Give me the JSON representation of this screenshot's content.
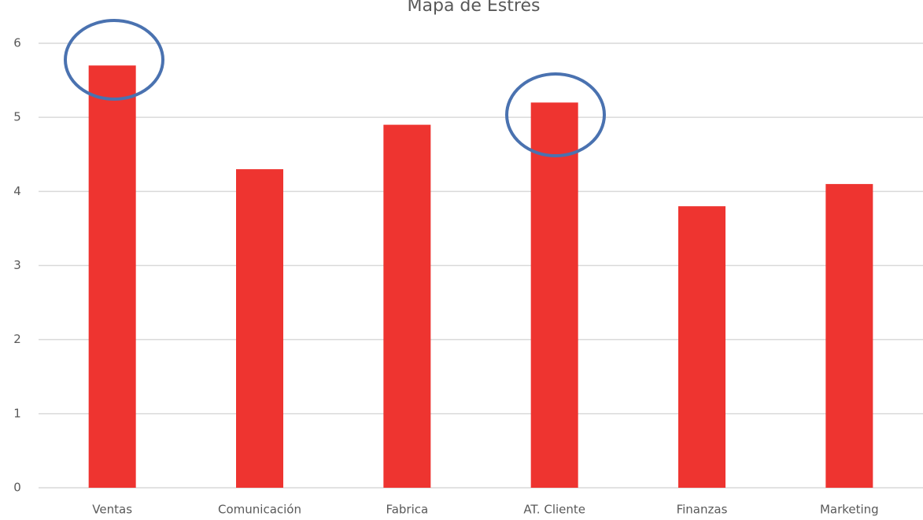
{
  "chart_data": {
    "type": "bar",
    "title": "Mapa de Estrés",
    "categories": [
      "Ventas",
      "Comunicación",
      "Fabrica",
      "AT. Cliente",
      "Finanzas",
      "Marketing"
    ],
    "values": [
      5.7,
      4.3,
      4.9,
      5.2,
      3.8,
      4.1
    ],
    "color": "#ee3430",
    "ylim": [
      0,
      6
    ],
    "yticks": [
      0,
      1,
      2,
      3,
      4,
      5,
      6
    ],
    "grid": true
  }
}
